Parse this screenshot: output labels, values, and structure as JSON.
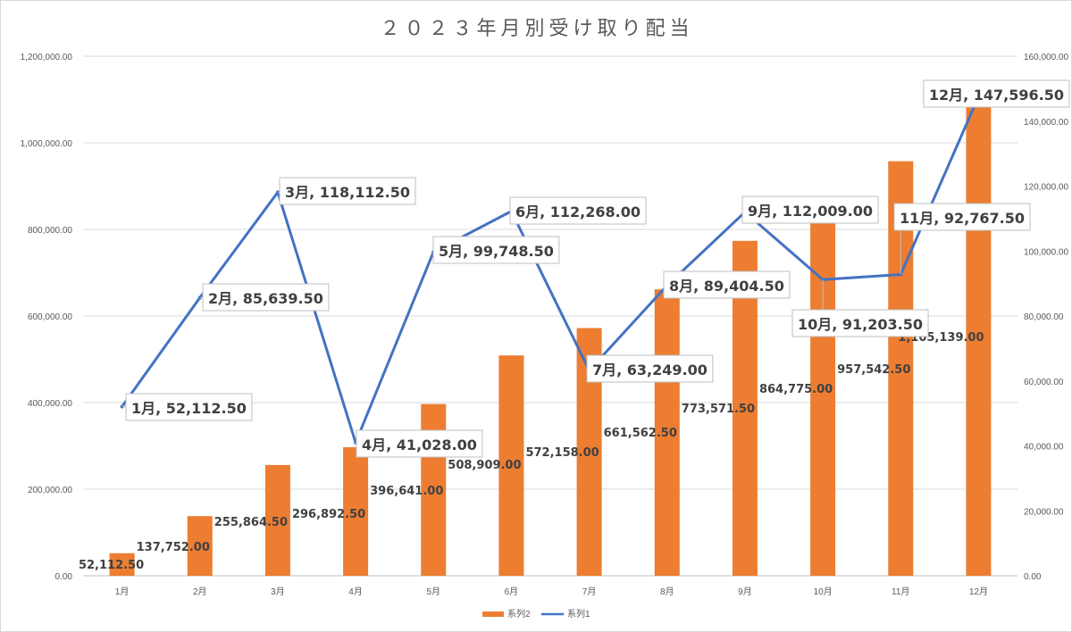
{
  "chart_data": {
    "type": "bar+line",
    "title": "２０２３年月別受け取り配当",
    "categories": [
      "1月",
      "2月",
      "3月",
      "4月",
      "5月",
      "6月",
      "7月",
      "8月",
      "9月",
      "10月",
      "11月",
      "12月"
    ],
    "series": [
      {
        "name": "系列2",
        "type": "bar",
        "axis": "left",
        "color": "#ED7D31",
        "values": [
          52112.5,
          137752.0,
          255864.5,
          296892.5,
          396641.0,
          508909.0,
          572158.0,
          661562.5,
          773571.5,
          864775.0,
          957542.5,
          1105139.0
        ],
        "labels": [
          "52,112.50",
          "137,752.00",
          "255,864.50",
          "296,892.50",
          "396,641.00",
          "508,909.00",
          "572,158.00",
          "661,562.50",
          "773,571.50",
          "864,775.00",
          "957,542.50",
          "1,105,139.00"
        ]
      },
      {
        "name": "系列1",
        "type": "line",
        "axis": "right",
        "color": "#4472C4",
        "values": [
          52112.5,
          85639.5,
          118112.5,
          41028.0,
          99748.5,
          112268.0,
          63249.0,
          89404.5,
          112009.0,
          91203.5,
          92767.5,
          147596.5
        ],
        "labels": [
          "1月, 52,112.50",
          "2月, 85,639.50",
          "3月, 118,112.50",
          "4月, 41,028.00",
          "5月, 99,748.50",
          "6月, 112,268.00",
          "7月, 63,249.00",
          "8月, 89,404.50",
          "9月, 112,009.00",
          "10月, 91,203.50",
          "11月, 92,767.50",
          "12月, 147,596.50"
        ]
      }
    ],
    "y_left": {
      "ylim": [
        0,
        1200000
      ],
      "ticks": [
        0,
        200000,
        400000,
        600000,
        800000,
        1000000,
        1200000
      ],
      "tick_labels": [
        "0.00",
        "200,000.00",
        "400,000.00",
        "600,000.00",
        "800,000.00",
        "1,000,000.00",
        "1,200,000.00"
      ]
    },
    "y_right": {
      "ylim": [
        0,
        160000
      ],
      "ticks": [
        0,
        20000,
        40000,
        60000,
        80000,
        100000,
        120000,
        140000,
        160000
      ],
      "tick_labels": [
        "0.00",
        "20,000.00",
        "40,000.00",
        "60,000.00",
        "80,000.00",
        "100,000.00",
        "120,000.00",
        "140,000.00",
        "160,000.00"
      ]
    },
    "grid": true,
    "legend": "bottom"
  }
}
